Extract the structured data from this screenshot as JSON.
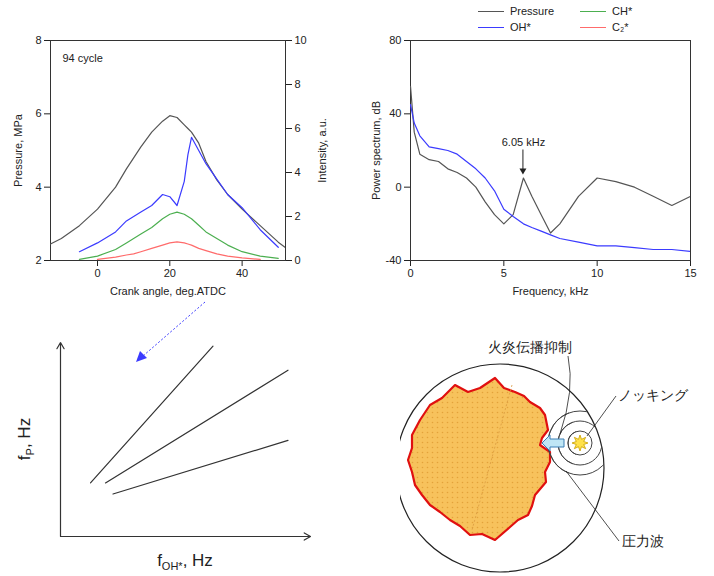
{
  "chart_data": [
    {
      "type": "line",
      "xlabel": "Crank angle, deg.ATDC",
      "ylabel": "Pressure, MPa",
      "y2label": "Intensity, a.u.",
      "annotations": [
        {
          "text": "94 cycle"
        }
      ],
      "xlim": [
        -13,
        52
      ],
      "xticks": [
        0,
        20,
        40
      ],
      "ylim": [
        2,
        8
      ],
      "yticks": [
        2,
        4,
        6,
        8
      ],
      "y2lim": [
        0,
        10
      ],
      "y2ticks": [
        0,
        2,
        4,
        6,
        8,
        10
      ],
      "legend": "top-right",
      "x": [
        -13,
        -10,
        -5,
        0,
        5,
        8,
        10,
        12,
        15,
        18,
        20,
        22,
        24,
        25,
        26,
        28,
        30,
        33,
        36,
        40,
        45,
        50,
        52
      ],
      "series": [
        {
          "name": "Pressure",
          "color": "#555555",
          "values": [
            2.45,
            2.6,
            2.95,
            3.4,
            4.0,
            4.5,
            4.8,
            5.1,
            5.5,
            5.8,
            5.95,
            5.9,
            5.7,
            5.6,
            5.5,
            5.2,
            4.7,
            4.2,
            3.8,
            3.4,
            2.95,
            2.5,
            2.35
          ]
        },
        {
          "name": "OH*",
          "color": "#3b3bff",
          "axis": "y2",
          "values": [
            null,
            null,
            0.4,
            0.8,
            1.3,
            1.8,
            2.0,
            2.2,
            2.5,
            3.0,
            2.9,
            2.5,
            3.6,
            4.8,
            5.6,
            5.0,
            4.4,
            3.7,
            3.0,
            2.4,
            1.4,
            0.6,
            null
          ]
        },
        {
          "name": "CH*",
          "color": "#4caf50",
          "axis": "y2",
          "values": [
            null,
            null,
            0.05,
            0.2,
            0.5,
            0.8,
            1.0,
            1.2,
            1.5,
            1.9,
            2.1,
            2.2,
            2.1,
            2.0,
            1.9,
            1.6,
            1.3,
            1.0,
            0.7,
            0.4,
            0.2,
            0.1,
            null
          ]
        },
        {
          "name": "C₂*",
          "color": "#ff6b6b",
          "axis": "y2",
          "values": [
            null,
            null,
            null,
            0.05,
            0.15,
            0.25,
            0.3,
            0.4,
            0.55,
            0.7,
            0.8,
            0.85,
            0.8,
            0.75,
            0.7,
            0.55,
            0.45,
            0.3,
            0.2,
            0.12,
            0.05,
            null,
            null
          ]
        }
      ]
    },
    {
      "type": "line",
      "xlabel": "Frequency, kHz",
      "ylabel": "Power spectrum, dB",
      "annotations": [
        {
          "text": "6.05 kHz",
          "x": 6.05,
          "y": 5
        }
      ],
      "xlim": [
        0,
        15
      ],
      "xticks": [
        0,
        5,
        10,
        15
      ],
      "ylim": [
        -40,
        80
      ],
      "yticks": [
        -40,
        0,
        40,
        80
      ],
      "x": [
        0,
        0.2,
        0.5,
        1,
        1.5,
        2,
        2.5,
        3,
        3.5,
        4,
        4.5,
        5,
        5.5,
        6.05,
        6.5,
        7,
        7.5,
        8,
        9,
        10,
        11,
        12,
        13,
        14,
        15
      ],
      "series": [
        {
          "name": "Pressure",
          "color": "#555555",
          "values": [
            55,
            30,
            18,
            15,
            14,
            10,
            8,
            5,
            0,
            -8,
            -15,
            -20,
            -15,
            5,
            -5,
            -15,
            -25,
            -20,
            -5,
            5,
            3,
            0,
            -5,
            -10,
            -5
          ]
        },
        {
          "name": "OH*",
          "color": "#3b3bff",
          "values": [
            45,
            35,
            28,
            22,
            21,
            20,
            18,
            14,
            10,
            5,
            -2,
            -12,
            -16,
            -20,
            -22,
            -24,
            -26,
            -28,
            -30,
            -32,
            -32,
            -33,
            -34,
            -34,
            -35
          ]
        }
      ]
    },
    {
      "type": "line",
      "xlabel": {
        "main": "f",
        "sub": "OH*",
        "tail": ", Hz"
      },
      "ylabel": {
        "main": "f",
        "sub": "P",
        "tail": ", Hz"
      },
      "tick_labels": false,
      "xlim": [
        0,
        10
      ],
      "ylim": [
        0,
        10.5
      ],
      "series": [
        {
          "color": "#333333",
          "x": [
            1.2,
            6.1
          ],
          "values": [
            2.9,
            10.3
          ]
        },
        {
          "color": "#333333",
          "x": [
            1.8,
            9.1
          ],
          "values": [
            2.9,
            9.0
          ]
        },
        {
          "color": "#333333",
          "x": [
            2.1,
            9.1
          ],
          "values": [
            2.3,
            5.2
          ]
        }
      ]
    }
  ],
  "diagram": {
    "labels": {
      "flame_suppression": "火炎伝播抑制",
      "knocking": "ノッキング",
      "pressure_wave": "圧力波"
    }
  }
}
